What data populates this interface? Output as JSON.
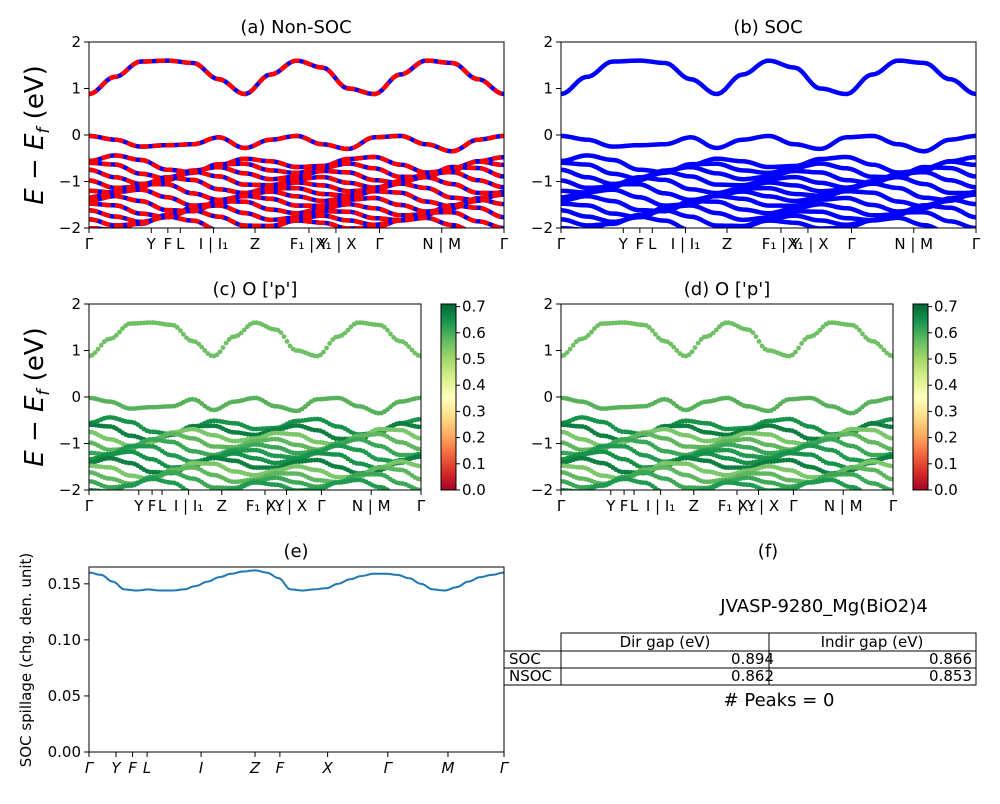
{
  "figure_title": "JVASP-9280_Mg(BiO2)4",
  "y_label_main": "E − E",
  "y_label_sub": "f",
  "y_label_unit": " (eV)",
  "spill_ylabel": "SOC spillage (chg. den. unit)",
  "colorbar_ticks": [
    "0.0",
    "0.1",
    "0.2",
    "0.3",
    "0.4",
    "0.5",
    "0.6",
    "0.7"
  ],
  "colors": {
    "nonsoc_red": "#ff0000",
    "nonsoc_blue": "#0000ff",
    "soc_blue": "#0000ff",
    "spill": "#1f77b4"
  },
  "chart_data": [
    {
      "id": "a",
      "type": "line",
      "title": "(a) Non-SOC",
      "ylim": [
        -2,
        2
      ],
      "yticks": [
        "2",
        "1",
        "0",
        "−1",
        "−2"
      ],
      "xticks": [
        "Γ",
        "Y",
        "F",
        "L",
        "I | I₁",
        "Z",
        "F₁ | Y",
        "X₁ | X",
        "Γ",
        "N | M",
        "Γ"
      ],
      "xtick_pos": [
        0,
        0.15,
        0.19,
        0.22,
        0.3,
        0.4,
        0.53,
        0.595,
        0.7,
        0.85,
        1.0
      ],
      "series": [
        {
          "values": [
            0.88,
            1.25,
            1.58,
            1.6,
            1.55,
            1.2,
            0.88,
            1.3,
            1.6,
            1.45,
            1.0,
            0.88,
            1.3,
            1.6,
            1.55,
            1.2,
            0.88
          ]
        },
        {
          "values": [
            -0.02,
            -0.1,
            -0.25,
            -0.22,
            -0.2,
            -0.05,
            -0.28,
            -0.1,
            -0.02,
            -0.2,
            -0.3,
            -0.05,
            -0.02,
            -0.2,
            -0.35,
            -0.1,
            -0.02
          ]
        }
      ]
    },
    {
      "id": "b",
      "type": "line",
      "title": "(b) SOC",
      "ylim": [
        -2,
        2
      ],
      "yticks": [
        "2",
        "1",
        "0",
        "−1",
        "−2"
      ],
      "xticks": [
        "Γ",
        "Y",
        "F",
        "L",
        "I | I₁",
        "Z",
        "F₁ | Y",
        "X₁ | X",
        "Γ",
        "N | M",
        "Γ"
      ],
      "xtick_pos": [
        0,
        0.15,
        0.19,
        0.22,
        0.3,
        0.4,
        0.53,
        0.595,
        0.7,
        0.85,
        1.0
      ],
      "series": [
        {
          "values": [
            0.88,
            1.25,
            1.58,
            1.6,
            1.55,
            1.2,
            0.88,
            1.3,
            1.6,
            1.45,
            1.0,
            0.88,
            1.3,
            1.6,
            1.55,
            1.2,
            0.88
          ]
        },
        {
          "values": [
            -0.02,
            -0.1,
            -0.25,
            -0.22,
            -0.2,
            -0.05,
            -0.28,
            -0.1,
            -0.02,
            -0.2,
            -0.3,
            -0.05,
            -0.02,
            -0.2,
            -0.35,
            -0.1,
            -0.02
          ]
        }
      ]
    },
    {
      "id": "c",
      "type": "scatter",
      "title": "(c)  O ['p']",
      "ylim": [
        -2,
        2
      ],
      "clim": [
        0,
        0.7
      ],
      "yticks": [
        "2",
        "1",
        "0",
        "−1",
        "−2"
      ],
      "xticks": [
        "Γ",
        "Y",
        "F",
        "L",
        "I | I₁",
        "Z",
        "F₁ | Y",
        "X₁ | X",
        "Γ",
        "N | M",
        "Γ"
      ],
      "xtick_pos": [
        0,
        0.15,
        0.19,
        0.22,
        0.3,
        0.4,
        0.53,
        0.595,
        0.7,
        0.85,
        1.0
      ]
    },
    {
      "id": "d",
      "type": "scatter",
      "title": "(d) O ['p']",
      "ylim": [
        -2,
        2
      ],
      "clim": [
        0,
        0.7
      ],
      "yticks": [
        "2",
        "1",
        "0",
        "−1",
        "−2"
      ],
      "xticks": [
        "Γ",
        "Y",
        "F",
        "L",
        "I | I₁",
        "Z",
        "F₁ | Y",
        "X₁ | X",
        "Γ",
        "N | M",
        "Γ"
      ],
      "xtick_pos": [
        0,
        0.15,
        0.19,
        0.22,
        0.3,
        0.4,
        0.53,
        0.595,
        0.7,
        0.85,
        1.0
      ]
    },
    {
      "id": "e",
      "type": "line",
      "title": "(e)",
      "ylim": [
        0,
        0.165
      ],
      "yticks": [
        "0.15",
        "0.10",
        "0.05",
        "0.00"
      ],
      "xticks": [
        "Γ",
        "Y",
        "F",
        "L",
        "I",
        "Z",
        "F",
        "X",
        "Γ",
        "M",
        "Γ"
      ],
      "xtick_pos": [
        0,
        0.065,
        0.105,
        0.14,
        0.27,
        0.4,
        0.46,
        0.575,
        0.72,
        0.865,
        1.0
      ],
      "values": [
        0.16,
        0.158,
        0.152,
        0.145,
        0.144,
        0.145,
        0.144,
        0.144,
        0.145,
        0.148,
        0.152,
        0.156,
        0.159,
        0.161,
        0.162,
        0.16,
        0.155,
        0.145,
        0.144,
        0.145,
        0.146,
        0.15,
        0.154,
        0.157,
        0.159,
        0.159,
        0.158,
        0.155,
        0.15,
        0.145,
        0.144,
        0.147,
        0.152,
        0.156,
        0.158,
        0.16
      ]
    },
    {
      "id": "f",
      "type": "table",
      "title": "(f)",
      "columns": [
        "",
        "Dir gap (eV)",
        "Indir gap (eV)"
      ],
      "rows": [
        [
          "SOC",
          "0.894",
          "0.866"
        ],
        [
          "NSOC",
          "0.862",
          "0.853"
        ]
      ],
      "footnote": "# Peaks = 0"
    }
  ]
}
